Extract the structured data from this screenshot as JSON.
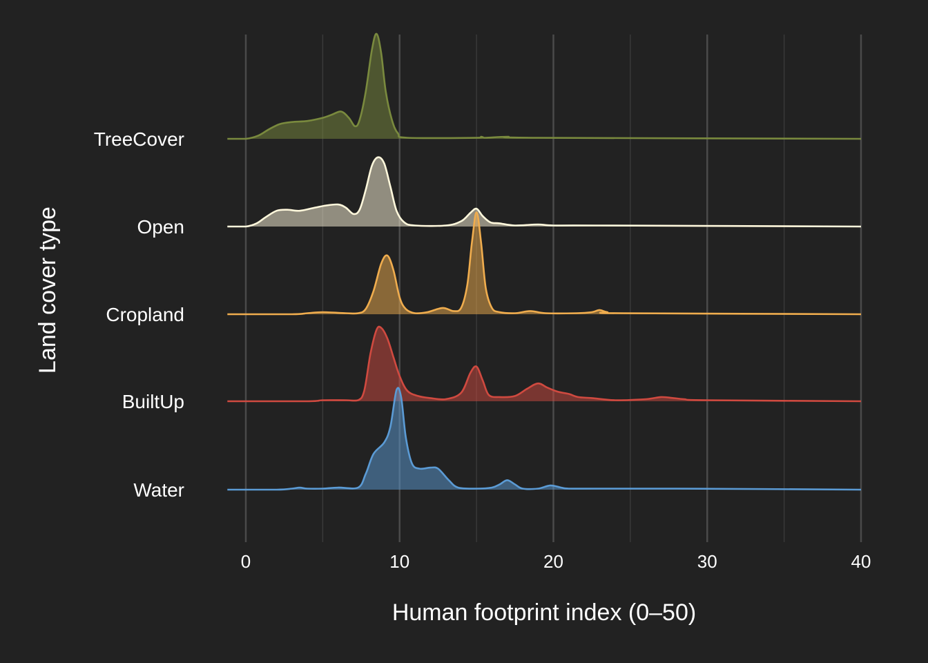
{
  "chart_data": {
    "type": "ridgeline",
    "title": "",
    "xlabel": "Human footprint index (0–50)",
    "ylabel": "Land cover type",
    "xlim": [
      -1.2,
      40
    ],
    "x_ticks": [
      0,
      10,
      20,
      30,
      40
    ],
    "x_tick_labels": [
      "0",
      "10",
      "20",
      "30",
      "40"
    ],
    "grid": {
      "major": true,
      "minor": true,
      "vertical_only": true
    },
    "legend": "none",
    "categories": [
      "TreeCover",
      "Open",
      "Cropland",
      "BuiltUp",
      "Water"
    ],
    "series": [
      {
        "name": "TreeCover",
        "color": "#7a8a3e",
        "points": [
          [
            -1.2,
            0
          ],
          [
            0,
            0
          ],
          [
            0.8,
            0.03
          ],
          [
            1.5,
            0.09
          ],
          [
            2.2,
            0.14
          ],
          [
            3,
            0.16
          ],
          [
            4,
            0.17
          ],
          [
            5,
            0.2
          ],
          [
            5.6,
            0.23
          ],
          [
            6.2,
            0.26
          ],
          [
            6.7,
            0.2
          ],
          [
            7.1,
            0.12
          ],
          [
            7.4,
            0.18
          ],
          [
            7.8,
            0.45
          ],
          [
            8.2,
            0.85
          ],
          [
            8.5,
            1.0
          ],
          [
            8.8,
            0.82
          ],
          [
            9.1,
            0.45
          ],
          [
            9.5,
            0.18
          ],
          [
            9.9,
            0.05
          ],
          [
            10.5,
            0.01
          ],
          [
            15,
            0.01
          ],
          [
            15.3,
            0.02
          ],
          [
            15.6,
            0.01
          ],
          [
            17,
            0.02
          ],
          [
            19,
            0.01
          ],
          [
            40,
            0
          ]
        ]
      },
      {
        "name": "Open",
        "color": "#fff8dc",
        "points": [
          [
            -1.2,
            0
          ],
          [
            0,
            0
          ],
          [
            0.7,
            0.03
          ],
          [
            1.3,
            0.09
          ],
          [
            2,
            0.15
          ],
          [
            2.7,
            0.16
          ],
          [
            3.5,
            0.15
          ],
          [
            4.5,
            0.18
          ],
          [
            5.2,
            0.2
          ],
          [
            6,
            0.21
          ],
          [
            6.5,
            0.18
          ],
          [
            7,
            0.12
          ],
          [
            7.4,
            0.16
          ],
          [
            7.8,
            0.35
          ],
          [
            8.2,
            0.58
          ],
          [
            8.6,
            0.66
          ],
          [
            9,
            0.6
          ],
          [
            9.4,
            0.38
          ],
          [
            9.8,
            0.15
          ],
          [
            10.3,
            0.04
          ],
          [
            11,
            0.01
          ],
          [
            13,
            0.01
          ],
          [
            14,
            0.05
          ],
          [
            14.6,
            0.13
          ],
          [
            15,
            0.17
          ],
          [
            15.4,
            0.1
          ],
          [
            15.9,
            0.04
          ],
          [
            16.5,
            0.03
          ],
          [
            17.5,
            0.01
          ],
          [
            19,
            0.02
          ],
          [
            20,
            0.01
          ],
          [
            23,
            0.01
          ],
          [
            40,
            0
          ]
        ]
      },
      {
        "name": "Cropland",
        "color": "#f0ad4e",
        "points": [
          [
            -1.2,
            0
          ],
          [
            3,
            0
          ],
          [
            4,
            0.01
          ],
          [
            5,
            0.02
          ],
          [
            6.5,
            0.01
          ],
          [
            7.3,
            0.01
          ],
          [
            7.8,
            0.05
          ],
          [
            8.3,
            0.22
          ],
          [
            8.8,
            0.48
          ],
          [
            9.2,
            0.56
          ],
          [
            9.6,
            0.42
          ],
          [
            10,
            0.16
          ],
          [
            10.4,
            0.05
          ],
          [
            11,
            0.01
          ],
          [
            11.8,
            0.02
          ],
          [
            12.8,
            0.06
          ],
          [
            13.5,
            0.03
          ],
          [
            14,
            0.06
          ],
          [
            14.4,
            0.28
          ],
          [
            14.7,
            0.68
          ],
          [
            15,
            0.97
          ],
          [
            15.3,
            0.68
          ],
          [
            15.6,
            0.25
          ],
          [
            16,
            0.06
          ],
          [
            16.5,
            0.02
          ],
          [
            17.5,
            0.01
          ],
          [
            18.5,
            0.03
          ],
          [
            19.5,
            0.01
          ],
          [
            21.5,
            0.01
          ],
          [
            22.5,
            0.02
          ],
          [
            23,
            0.04
          ],
          [
            23.5,
            0.02
          ],
          [
            24.5,
            0.01
          ],
          [
            40,
            0
          ]
        ]
      },
      {
        "name": "BuiltUp",
        "color": "#d04a40",
        "points": [
          [
            -1.2,
            0
          ],
          [
            4,
            0
          ],
          [
            5,
            0.01
          ],
          [
            6.5,
            0.01
          ],
          [
            7.3,
            0.01
          ],
          [
            7.7,
            0.1
          ],
          [
            8.1,
            0.45
          ],
          [
            8.5,
            0.68
          ],
          [
            8.8,
            0.7
          ],
          [
            9.2,
            0.6
          ],
          [
            9.6,
            0.42
          ],
          [
            10,
            0.24
          ],
          [
            10.5,
            0.1
          ],
          [
            11.2,
            0.05
          ],
          [
            12,
            0.03
          ],
          [
            13,
            0.02
          ],
          [
            14,
            0.08
          ],
          [
            14.6,
            0.27
          ],
          [
            15,
            0.33
          ],
          [
            15.4,
            0.2
          ],
          [
            15.8,
            0.06
          ],
          [
            16.5,
            0.04
          ],
          [
            17.5,
            0.05
          ],
          [
            18.3,
            0.12
          ],
          [
            19,
            0.17
          ],
          [
            19.6,
            0.13
          ],
          [
            20.3,
            0.09
          ],
          [
            21,
            0.07
          ],
          [
            21.6,
            0.04
          ],
          [
            22.5,
            0.03
          ],
          [
            24,
            0.01
          ],
          [
            26,
            0.02
          ],
          [
            27,
            0.04
          ],
          [
            27.8,
            0.03
          ],
          [
            28.5,
            0.02
          ],
          [
            30,
            0.01
          ],
          [
            40,
            0
          ]
        ]
      },
      {
        "name": "Water",
        "color": "#5b9bd5",
        "points": [
          [
            -1.2,
            0
          ],
          [
            2,
            0
          ],
          [
            3,
            0.01
          ],
          [
            3.5,
            0.02
          ],
          [
            4,
            0.01
          ],
          [
            5,
            0.01
          ],
          [
            6,
            0.02
          ],
          [
            7.3,
            0.02
          ],
          [
            7.8,
            0.15
          ],
          [
            8.3,
            0.34
          ],
          [
            9,
            0.45
          ],
          [
            9.4,
            0.6
          ],
          [
            9.8,
            0.95
          ],
          [
            10.1,
            0.88
          ],
          [
            10.4,
            0.5
          ],
          [
            10.8,
            0.25
          ],
          [
            11.3,
            0.2
          ],
          [
            12,
            0.21
          ],
          [
            12.5,
            0.2
          ],
          [
            13.2,
            0.09
          ],
          [
            13.8,
            0.02
          ],
          [
            15,
            0.01
          ],
          [
            16,
            0.02
          ],
          [
            16.5,
            0.05
          ],
          [
            17,
            0.09
          ],
          [
            17.5,
            0.05
          ],
          [
            18,
            0.01
          ],
          [
            19,
            0.01
          ],
          [
            19.8,
            0.04
          ],
          [
            20.5,
            0.02
          ],
          [
            21,
            0.01
          ],
          [
            23,
            0.01
          ],
          [
            28,
            0.01
          ],
          [
            40,
            0
          ]
        ]
      }
    ]
  }
}
